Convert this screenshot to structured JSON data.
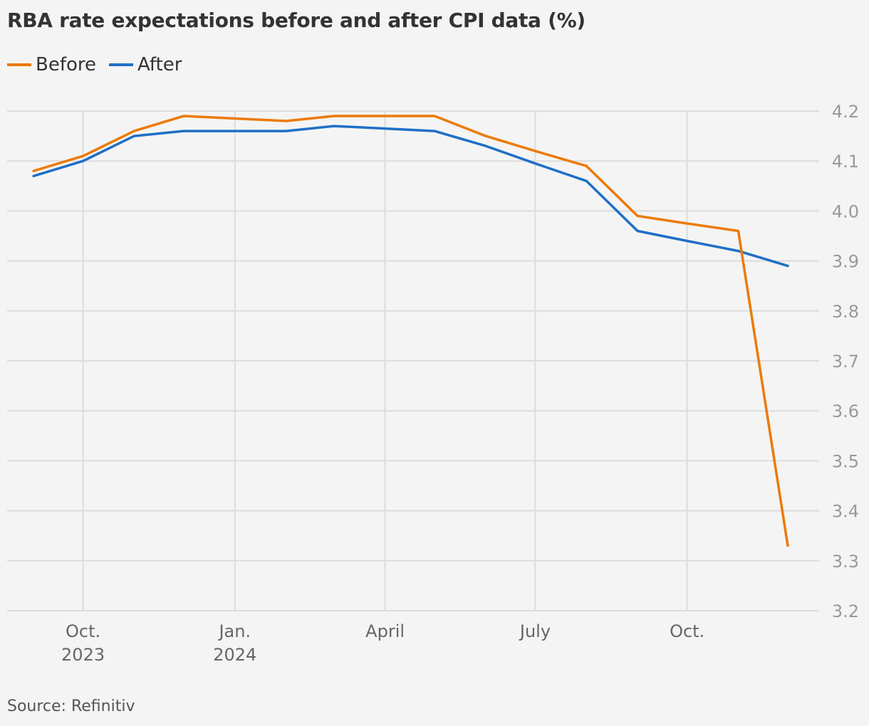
{
  "title": "RBA rate expectations before and after CPI data (%)",
  "source": "Source: Refinitiv",
  "legend": [
    {
      "label": "Before",
      "color": "#ec7a08"
    },
    {
      "label": "After",
      "color": "#1f6fc5"
    }
  ],
  "chart_data": {
    "type": "line",
    "title": "RBA rate expectations before and after CPI data (%)",
    "xlabel": "",
    "ylabel": "",
    "x": [
      "2023-09-01",
      "2023-10-01",
      "2023-11-01",
      "2023-12-01",
      "2024-01-01",
      "2024-02-01",
      "2024-03-01",
      "2024-04-01",
      "2024-05-01",
      "2024-06-01",
      "2024-07-01",
      "2024-08-01",
      "2024-09-01",
      "2024-10-01",
      "2024-11-01",
      "2024-12-01"
    ],
    "series": [
      {
        "name": "Before",
        "color": "#ec7a08",
        "values": [
          4.08,
          4.11,
          4.16,
          4.19,
          4.185,
          4.18,
          4.19,
          4.19,
          4.19,
          4.15,
          4.12,
          4.09,
          3.99,
          3.975,
          3.96,
          3.33
        ]
      },
      {
        "name": "After",
        "color": "#1f6fc5",
        "values": [
          4.07,
          4.1,
          4.15,
          4.16,
          4.16,
          4.16,
          4.17,
          4.165,
          4.16,
          4.13,
          4.095,
          4.06,
          3.96,
          3.94,
          3.92,
          3.89
        ]
      }
    ],
    "ylim": [
      3.2,
      4.2
    ],
    "yticks": [
      "4.2",
      "4.1",
      "4.0",
      "3.9",
      "3.8",
      "3.7",
      "3.6",
      "3.5",
      "3.4",
      "3.3",
      "3.2"
    ],
    "xticks": [
      {
        "date": "2023-10-01",
        "line1": "Oct.",
        "line2": "2023"
      },
      {
        "date": "2024-01-01",
        "line1": "Jan.",
        "line2": "2024"
      },
      {
        "date": "2024-04-01",
        "line1": "April",
        "line2": ""
      },
      {
        "date": "2024-07-01",
        "line1": "July",
        "line2": ""
      },
      {
        "date": "2024-10-01",
        "line1": "Oct.",
        "line2": ""
      }
    ],
    "grid": true,
    "legend_position": "top-left",
    "y_axis_side": "right"
  }
}
